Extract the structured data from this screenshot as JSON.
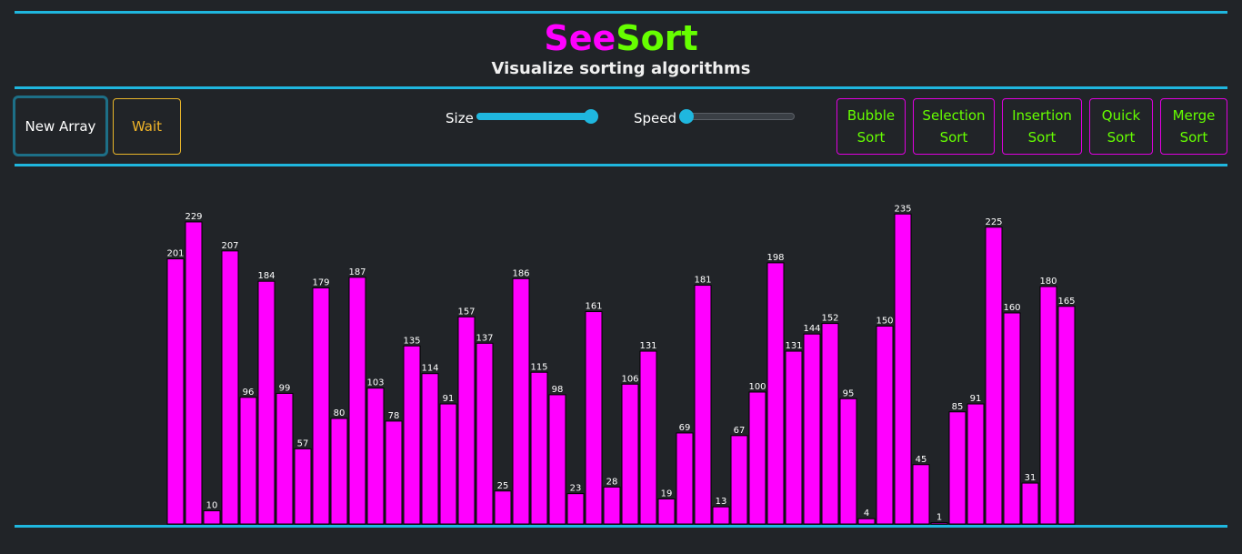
{
  "header": {
    "title_part1": "See",
    "title_part2": "Sort",
    "subtitle": "Visualize sorting algorithms"
  },
  "controls": {
    "new_array_label": "New Array",
    "wait_label": "Wait",
    "size_label": "Size",
    "speed_label": "Speed",
    "size_value_fraction": 1.0,
    "speed_value_fraction": 0.06
  },
  "algorithms": [
    {
      "label": "Bubble\nSort"
    },
    {
      "label": "Selection\nSort"
    },
    {
      "label": "Insertion\nSort"
    },
    {
      "label": "Quick\nSort"
    },
    {
      "label": "Merge\nSort"
    }
  ],
  "colors": {
    "accent": "#1fb7df",
    "bar": "#ff00ff",
    "title_see": "#ff00ff",
    "title_sort": "#66ff00",
    "wait": "#f0b429",
    "algo_text": "#66ff00",
    "algo_border": "#e000e0",
    "background": "#212428"
  },
  "chart_data": {
    "type": "bar",
    "values": [
      201,
      229,
      10,
      207,
      96,
      184,
      99,
      57,
      179,
      80,
      187,
      103,
      78,
      135,
      114,
      91,
      157,
      137,
      25,
      186,
      115,
      98,
      23,
      161,
      28,
      106,
      131,
      19,
      69,
      181,
      13,
      67,
      100,
      198,
      131,
      144,
      152,
      95,
      4,
      150,
      235,
      45,
      1,
      85,
      91,
      225,
      160,
      31,
      180,
      165
    ],
    "ylim": [
      0,
      240
    ],
    "grid": false
  }
}
